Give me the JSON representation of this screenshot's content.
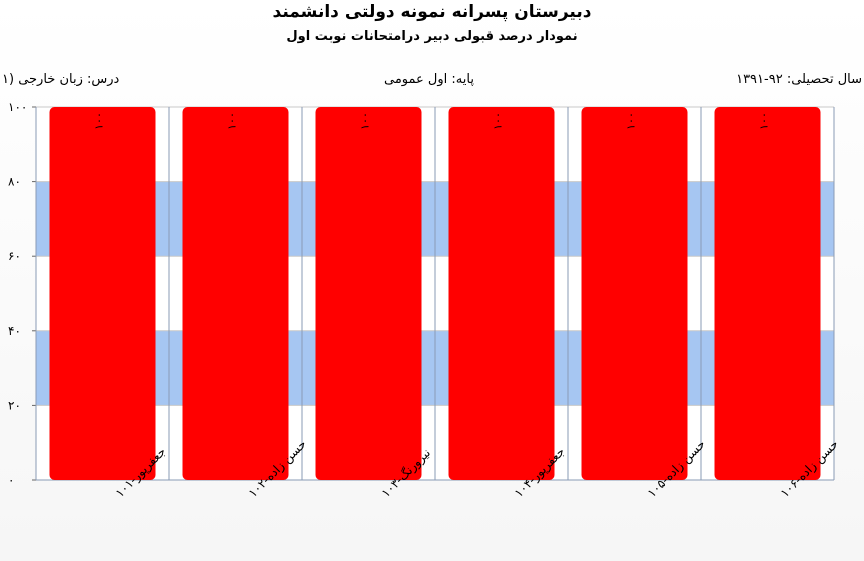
{
  "header": {
    "title": "دبیرستان پسرانه نمونه دولتی دانشمند",
    "subtitle": "نمودار درصد قبولی دبیر درامتحانات نوبت اول",
    "year_text": "سال تحصیلی: ۹۲-۱۳۹۱",
    "grade_text": "پایه: اول عمومی",
    "lesson_text": "درس: زبان خارجی (۱"
  },
  "colors": {
    "bar": "#ff0000",
    "band": "#a6c6f2",
    "grid": "#c8c8c8",
    "axis": "#8a9bb5"
  },
  "chart_data": {
    "type": "bar",
    "categories": [
      "جعفرپور-۱۰۱",
      "حسن زاده-۱۰۲",
      "نیرورنگ-۱۰۳",
      "جعفرپور-۱۰۴",
      "حسن زاده-۱۰۵",
      "حسن زاده-۱۰۶"
    ],
    "values": [
      100,
      100,
      100,
      100,
      100,
      100
    ],
    "data_labels": [
      "۱۰۰",
      "۱۰۰",
      "۱۰۰",
      "۱۰۰",
      "۱۰۰",
      "۱۰۰"
    ],
    "y_ticks": [
      0,
      20,
      40,
      60,
      80,
      100
    ],
    "y_tick_labels": [
      "۰",
      "۲۰",
      "۴۰",
      "۶۰",
      "۸۰",
      "۱۰۰"
    ],
    "ylim": [
      0,
      100
    ],
    "title": "دبیرستان پسرانه نمونه دولتی دانشمند",
    "xlabel": "",
    "ylabel": "",
    "grid": true,
    "alternating_bands": true
  }
}
